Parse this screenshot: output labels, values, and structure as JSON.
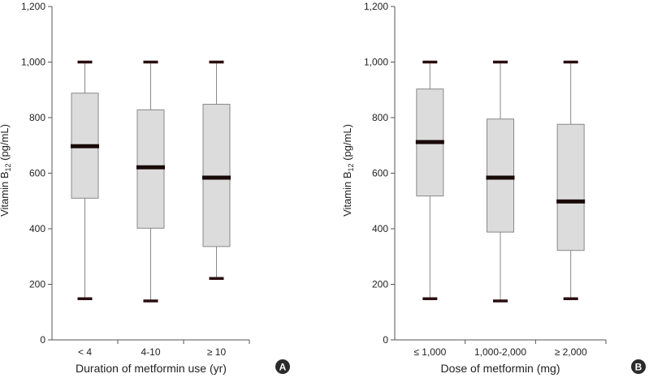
{
  "colors": {
    "box_fill": "#dcdcdc",
    "box_stroke": "#888888",
    "median": "#1a0a0a",
    "whisker_cap": "#2a0e10",
    "axis": "#555555",
    "badge": "#2b2b2b"
  },
  "chart_data": [
    {
      "type": "box",
      "panel_label": "A",
      "ylabel_main": "Vitamin B",
      "ylabel_sub": "12",
      "ylabel_tail": " (pg/mL)",
      "xlabel": "Duration of metformin use (yr)",
      "ylim": [
        0,
        1200
      ],
      "yticks": [
        0,
        200,
        400,
        600,
        800,
        1000,
        1200
      ],
      "ytick_labels": [
        "0",
        "200",
        "400",
        "600",
        "800",
        "1,000",
        "1,200"
      ],
      "categories": [
        "< 4",
        "4-10",
        "≥ 10"
      ],
      "boxes": [
        {
          "min": 148,
          "q1": 510,
          "median": 697,
          "q3": 888,
          "max": 1000
        },
        {
          "min": 140,
          "q1": 402,
          "median": 621,
          "q3": 828,
          "max": 1000
        },
        {
          "min": 221,
          "q1": 336,
          "median": 584,
          "q3": 848,
          "max": 1000
        }
      ]
    },
    {
      "type": "box",
      "panel_label": "B",
      "ylabel_main": "Vitamin B",
      "ylabel_sub": "12",
      "ylabel_tail": " (pg/mL)",
      "xlabel": "Dose of metformin (mg)",
      "ylim": [
        0,
        1200
      ],
      "yticks": [
        0,
        200,
        400,
        600,
        800,
        1000,
        1200
      ],
      "ytick_labels": [
        "0",
        "200",
        "400",
        "600",
        "800",
        "1,000",
        "1,200"
      ],
      "categories": [
        "≤ 1,000",
        "1,000-2,000",
        "≥ 2,000"
      ],
      "boxes": [
        {
          "min": 148,
          "q1": 518,
          "median": 712,
          "q3": 903,
          "max": 1000
        },
        {
          "min": 140,
          "q1": 388,
          "median": 584,
          "q3": 795,
          "max": 1000
        },
        {
          "min": 148,
          "q1": 322,
          "median": 498,
          "q3": 776,
          "max": 1000
        }
      ]
    }
  ]
}
